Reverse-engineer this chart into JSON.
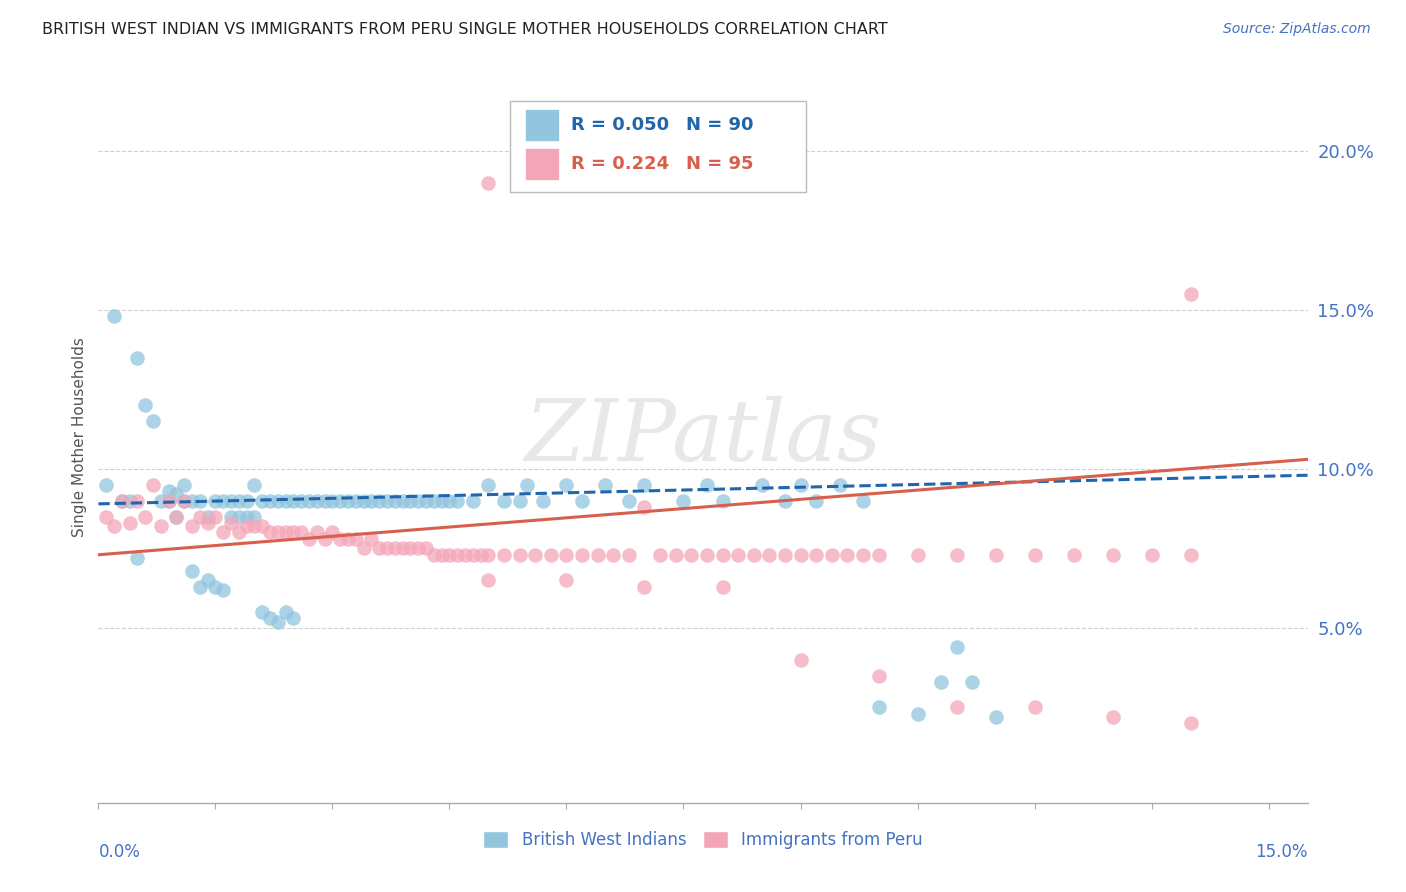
{
  "title": "BRITISH WEST INDIAN VS IMMIGRANTS FROM PERU SINGLE MOTHER HOUSEHOLDS CORRELATION CHART",
  "source": "Source: ZipAtlas.com",
  "ylabel": "Single Mother Households",
  "ytick_labels": [
    "5.0%",
    "10.0%",
    "15.0%",
    "20.0%"
  ],
  "ytick_values": [
    0.05,
    0.1,
    0.15,
    0.2
  ],
  "xlim": [
    0.0,
    0.155
  ],
  "ylim": [
    -0.005,
    0.225
  ],
  "blue_R": "0.050",
  "blue_N": "90",
  "pink_R": "0.224",
  "pink_N": "95",
  "blue_color": "#92c5de",
  "pink_color": "#f4a6b8",
  "blue_line_color": "#2166ac",
  "pink_line_color": "#d6604d",
  "legend_label_blue": "British West Indians",
  "legend_label_pink": "Immigrants from Peru",
  "blue_scatter_x": [
    0.001,
    0.002,
    0.003,
    0.004,
    0.005,
    0.005,
    0.006,
    0.007,
    0.008,
    0.009,
    0.009,
    0.01,
    0.01,
    0.011,
    0.011,
    0.012,
    0.012,
    0.013,
    0.013,
    0.014,
    0.014,
    0.015,
    0.015,
    0.016,
    0.016,
    0.017,
    0.017,
    0.018,
    0.018,
    0.019,
    0.019,
    0.02,
    0.02,
    0.021,
    0.021,
    0.022,
    0.022,
    0.023,
    0.023,
    0.024,
    0.024,
    0.025,
    0.025,
    0.026,
    0.027,
    0.028,
    0.029,
    0.03,
    0.031,
    0.032,
    0.033,
    0.034,
    0.035,
    0.036,
    0.037,
    0.038,
    0.039,
    0.04,
    0.041,
    0.042,
    0.043,
    0.044,
    0.045,
    0.046,
    0.048,
    0.05,
    0.052,
    0.054,
    0.055,
    0.057,
    0.06,
    0.062,
    0.065,
    0.068,
    0.07,
    0.075,
    0.078,
    0.08,
    0.085,
    0.088,
    0.09,
    0.092,
    0.095,
    0.098,
    0.1,
    0.105,
    0.108,
    0.11,
    0.112,
    0.115
  ],
  "blue_scatter_y": [
    0.095,
    0.148,
    0.09,
    0.09,
    0.135,
    0.072,
    0.12,
    0.115,
    0.09,
    0.093,
    0.09,
    0.092,
    0.085,
    0.095,
    0.09,
    0.09,
    0.068,
    0.09,
    0.063,
    0.085,
    0.065,
    0.09,
    0.063,
    0.09,
    0.062,
    0.09,
    0.085,
    0.09,
    0.085,
    0.09,
    0.085,
    0.095,
    0.085,
    0.09,
    0.055,
    0.09,
    0.053,
    0.09,
    0.052,
    0.09,
    0.055,
    0.09,
    0.053,
    0.09,
    0.09,
    0.09,
    0.09,
    0.09,
    0.09,
    0.09,
    0.09,
    0.09,
    0.09,
    0.09,
    0.09,
    0.09,
    0.09,
    0.09,
    0.09,
    0.09,
    0.09,
    0.09,
    0.09,
    0.09,
    0.09,
    0.095,
    0.09,
    0.09,
    0.095,
    0.09,
    0.095,
    0.09,
    0.095,
    0.09,
    0.095,
    0.09,
    0.095,
    0.09,
    0.095,
    0.09,
    0.095,
    0.09,
    0.095,
    0.09,
    0.025,
    0.023,
    0.033,
    0.044,
    0.033,
    0.022
  ],
  "pink_scatter_x": [
    0.001,
    0.002,
    0.003,
    0.004,
    0.005,
    0.006,
    0.007,
    0.008,
    0.009,
    0.01,
    0.011,
    0.012,
    0.013,
    0.014,
    0.015,
    0.016,
    0.017,
    0.018,
    0.019,
    0.02,
    0.021,
    0.022,
    0.023,
    0.024,
    0.025,
    0.026,
    0.027,
    0.028,
    0.029,
    0.03,
    0.031,
    0.032,
    0.033,
    0.034,
    0.035,
    0.036,
    0.037,
    0.038,
    0.039,
    0.04,
    0.041,
    0.042,
    0.043,
    0.044,
    0.045,
    0.046,
    0.047,
    0.048,
    0.049,
    0.05,
    0.052,
    0.054,
    0.056,
    0.058,
    0.06,
    0.062,
    0.064,
    0.066,
    0.068,
    0.07,
    0.072,
    0.074,
    0.076,
    0.078,
    0.08,
    0.082,
    0.084,
    0.086,
    0.088,
    0.09,
    0.092,
    0.094,
    0.096,
    0.098,
    0.1,
    0.105,
    0.11,
    0.115,
    0.12,
    0.125,
    0.13,
    0.135,
    0.14,
    0.05,
    0.06,
    0.07,
    0.08,
    0.09,
    0.1,
    0.11,
    0.12,
    0.13,
    0.14,
    0.05,
    0.14
  ],
  "pink_scatter_y": [
    0.085,
    0.082,
    0.09,
    0.083,
    0.09,
    0.085,
    0.095,
    0.082,
    0.09,
    0.085,
    0.09,
    0.082,
    0.085,
    0.083,
    0.085,
    0.08,
    0.083,
    0.08,
    0.082,
    0.082,
    0.082,
    0.08,
    0.08,
    0.08,
    0.08,
    0.08,
    0.078,
    0.08,
    0.078,
    0.08,
    0.078,
    0.078,
    0.078,
    0.075,
    0.078,
    0.075,
    0.075,
    0.075,
    0.075,
    0.075,
    0.075,
    0.075,
    0.073,
    0.073,
    0.073,
    0.073,
    0.073,
    0.073,
    0.073,
    0.073,
    0.073,
    0.073,
    0.073,
    0.073,
    0.073,
    0.073,
    0.073,
    0.073,
    0.073,
    0.088,
    0.073,
    0.073,
    0.073,
    0.073,
    0.073,
    0.073,
    0.073,
    0.073,
    0.073,
    0.073,
    0.073,
    0.073,
    0.073,
    0.073,
    0.073,
    0.073,
    0.073,
    0.073,
    0.073,
    0.073,
    0.073,
    0.073,
    0.073,
    0.065,
    0.065,
    0.063,
    0.063,
    0.04,
    0.035,
    0.025,
    0.025,
    0.022,
    0.02,
    0.19,
    0.155
  ],
  "blue_trend_x": [
    0.0,
    0.155
  ],
  "blue_trend_y": [
    0.089,
    0.098
  ],
  "pink_trend_x": [
    0.0,
    0.155
  ],
  "pink_trend_y": [
    0.073,
    0.103
  ],
  "watermark": "ZIPatlas",
  "background_color": "#ffffff",
  "grid_color": "#d0d0d0",
  "title_color": "#222222",
  "tick_label_color": "#4472c4"
}
